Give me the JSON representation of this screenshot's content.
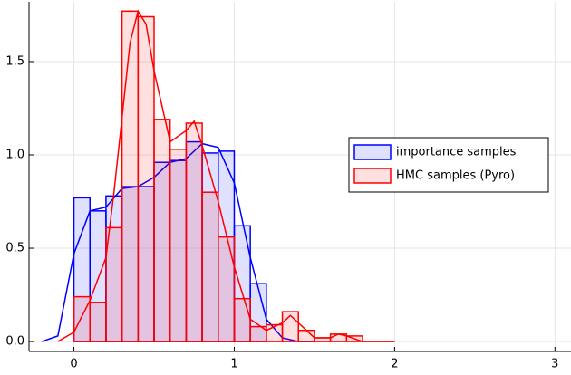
{
  "chart_data": {
    "type": "histogram",
    "xlim": [
      -0.28,
      3.1
    ],
    "ylim": [
      -0.053,
      1.82
    ],
    "xticks": [
      0,
      1,
      2,
      3
    ],
    "yticks": [
      {
        "value": 0,
        "label": "0.0"
      },
      {
        "value": 0.5,
        "label": "0.5"
      },
      {
        "value": 1,
        "label": "1.0"
      },
      {
        "value": 1.5,
        "label": "1.5"
      }
    ],
    "grid": true,
    "legend": "right",
    "series": [
      {
        "name": "importance samples",
        "color": "#0000ff",
        "bins": [
          0,
          0.1,
          0.2,
          0.3,
          0.4,
          0.5,
          0.6,
          0.7,
          0.8,
          0.9,
          1.0,
          1.1,
          1.2
        ],
        "values": [
          0.77,
          0.7,
          0.78,
          0.83,
          0.83,
          0.96,
          0.97,
          1.07,
          1.01,
          1.02,
          0.62,
          0.31
        ],
        "density_x": [
          -0.2,
          -0.1,
          0,
          0.1,
          0.2,
          0.3,
          0.4,
          0.5,
          0.6,
          0.7,
          0.8,
          0.9,
          1.0,
          1.1,
          1.2,
          1.3,
          1.4,
          1.5
        ],
        "density": [
          0,
          0.03,
          0.47,
          0.7,
          0.72,
          0.82,
          0.83,
          0.88,
          0.96,
          0.98,
          1.06,
          1.04,
          0.85,
          0.45,
          0.12,
          0.02,
          0,
          0
        ]
      },
      {
        "name": "HMC samples (Pyro)",
        "color": "#ff0000",
        "bins": [
          0,
          0.1,
          0.2,
          0.3,
          0.4,
          0.5,
          0.6,
          0.7,
          0.8,
          0.9,
          1.0,
          1.1,
          1.2,
          1.3,
          1.4,
          1.5,
          1.6,
          1.7,
          1.8
        ],
        "values": [
          0.24,
          0.21,
          0.61,
          1.77,
          1.74,
          1.19,
          1.03,
          1.17,
          0.8,
          0.56,
          0.23,
          0.08,
          0.09,
          0.16,
          0.06,
          0.02,
          0.04,
          0.03
        ],
        "density_x": [
          -0.1,
          0,
          0.1,
          0.2,
          0.25,
          0.3,
          0.35,
          0.4,
          0.45,
          0.5,
          0.6,
          0.7,
          0.75,
          0.8,
          0.9,
          1.0,
          1.1,
          1.2,
          1.3,
          1.35,
          1.4,
          1.5,
          1.6,
          1.65,
          1.7,
          1.8,
          2.0
        ],
        "density": [
          0,
          0.05,
          0.22,
          0.45,
          0.8,
          1.2,
          1.6,
          1.77,
          1.7,
          1.45,
          1.07,
          1.13,
          1.18,
          1.05,
          0.75,
          0.4,
          0.12,
          0.06,
          0.1,
          0.14,
          0.1,
          0.02,
          0.02,
          0.04,
          0.03,
          0,
          0
        ]
      }
    ]
  }
}
